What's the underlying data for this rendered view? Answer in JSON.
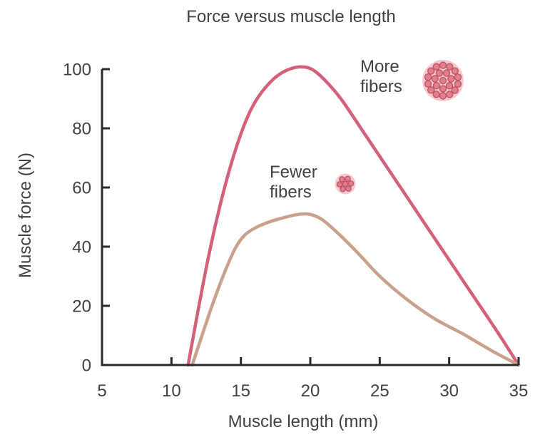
{
  "figure": {
    "background": "#ffffff",
    "text_color": "#414141",
    "axis_color": "#2b2b2b"
  },
  "chart_data": {
    "type": "line",
    "title": "Force versus muscle length",
    "xlabel": "Muscle length (mm)",
    "ylabel": "Muscle force (N)",
    "xlim": [
      5,
      35
    ],
    "ylim": [
      0,
      100
    ],
    "xticks": [
      5,
      10,
      15,
      20,
      25,
      30,
      35
    ],
    "yticks": [
      0,
      20,
      40,
      60,
      80,
      100
    ],
    "grid": false,
    "legend_position": "annotations-inside-plot",
    "series": [
      {
        "name": "More fibers",
        "color": "#d5607b",
        "peak": {
          "x": 19.5,
          "y": 100
        },
        "points": [
          [
            11.2,
            0
          ],
          [
            11.9,
            18
          ],
          [
            12.6,
            35
          ],
          [
            13.3,
            50
          ],
          [
            14.0,
            63
          ],
          [
            14.7,
            74
          ],
          [
            15.4,
            83
          ],
          [
            16.1,
            89.5
          ],
          [
            16.9,
            94.5
          ],
          [
            17.7,
            98
          ],
          [
            18.5,
            100
          ],
          [
            19.3,
            100.8
          ],
          [
            20.1,
            100
          ],
          [
            21,
            96.5
          ],
          [
            22.2,
            90
          ],
          [
            24,
            77.5
          ],
          [
            26,
            63.5
          ],
          [
            28,
            49.5
          ],
          [
            30,
            35.5
          ],
          [
            32,
            21.5
          ],
          [
            33.5,
            11
          ],
          [
            35,
            0
          ]
        ]
      },
      {
        "name": "Fewer fibers",
        "color": "#c9a28e",
        "peak": {
          "x": 19.5,
          "y": 51
        },
        "points": [
          [
            11.5,
            0
          ],
          [
            12.2,
            10
          ],
          [
            13,
            21
          ],
          [
            13.8,
            31
          ],
          [
            14.6,
            39.5
          ],
          [
            15.3,
            44
          ],
          [
            16.1,
            46.5
          ],
          [
            17,
            48.3
          ],
          [
            18,
            49.7
          ],
          [
            19,
            50.8
          ],
          [
            19.9,
            51
          ],
          [
            20.8,
            49.3
          ],
          [
            22,
            44.5
          ],
          [
            23.5,
            37.5
          ],
          [
            25,
            30
          ],
          [
            27,
            22
          ],
          [
            29,
            15.5
          ],
          [
            31,
            10.5
          ],
          [
            33,
            5
          ],
          [
            35,
            0
          ]
        ]
      }
    ],
    "annotations": [
      {
        "text": "More fibers",
        "approx_x": 24,
        "approx_y": 95,
        "icon": "more-fibers-cross-section"
      },
      {
        "text": "Fewer fibers",
        "approx_x": 17.5,
        "approx_y": 60,
        "icon": "fewer-fibers-cross-section"
      }
    ]
  },
  "icons": {
    "more_fibers": {
      "name": "more-fibers-cross-section",
      "outer_fill": "#f6c9ce",
      "dot_fill": "#e17f8c",
      "dot_stroke": "#c05468",
      "dot_count": 22
    },
    "fewer_fibers": {
      "name": "fewer-fibers-cross-section",
      "outer_fill": "#f6c9ce",
      "dot_fill": "#e17f8c",
      "dot_stroke": "#c05468",
      "dot_count": 7
    }
  }
}
